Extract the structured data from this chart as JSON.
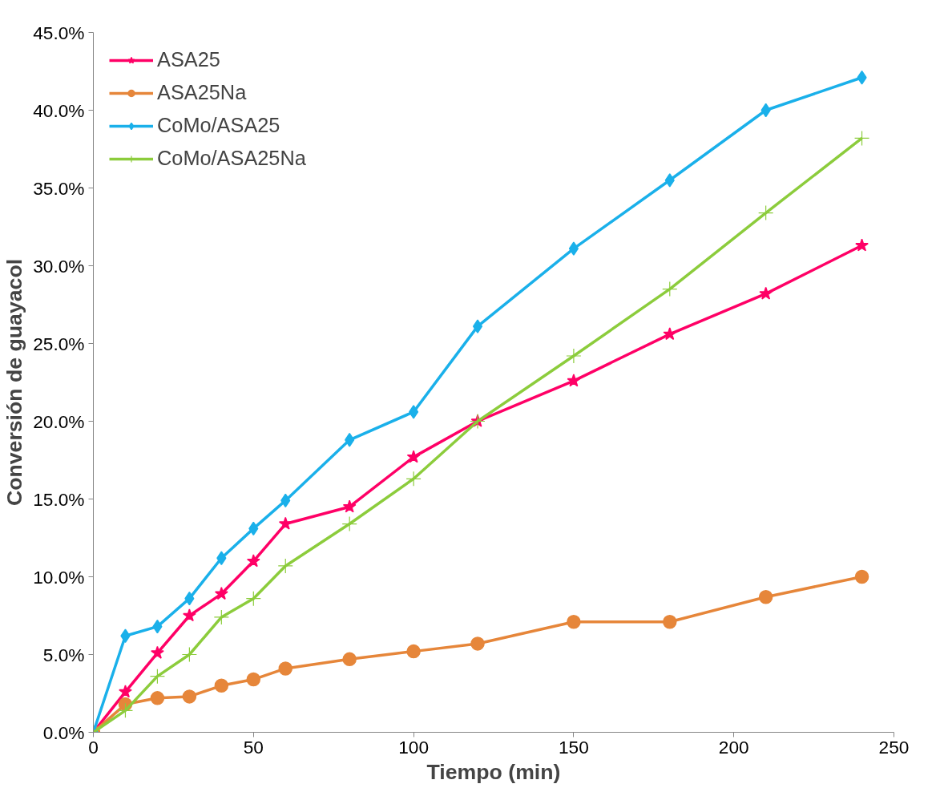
{
  "chart_data": {
    "type": "line",
    "xlabel": "Tiempo (min)",
    "ylabel": "Conversión de guayacol",
    "x": [
      0,
      10,
      20,
      30,
      40,
      50,
      60,
      80,
      100,
      120,
      150,
      180,
      210,
      240
    ],
    "series": [
      {
        "name": "ASA25",
        "color": "#ff0066",
        "marker": "star",
        "values": [
          0,
          2.6,
          5.1,
          7.5,
          8.9,
          11.0,
          13.4,
          14.5,
          17.7,
          20.0,
          22.6,
          25.6,
          28.2,
          31.3
        ]
      },
      {
        "name": "ASA25Na",
        "color": "#e6863a",
        "marker": "circle",
        "values": [
          0,
          1.8,
          2.2,
          2.3,
          3.0,
          3.4,
          4.1,
          4.7,
          5.2,
          5.7,
          7.1,
          7.1,
          8.7,
          10.0
        ]
      },
      {
        "name": "CoMo/ASA25",
        "color": "#1ab0ea",
        "marker": "diamond",
        "values": [
          0,
          6.2,
          6.8,
          8.6,
          11.2,
          13.1,
          14.9,
          18.8,
          20.6,
          26.1,
          31.1,
          35.5,
          40.0,
          42.1
        ]
      },
      {
        "name": "CoMo/ASA25Na",
        "color": "#8ccc3c",
        "marker": "cross",
        "values": [
          0,
          1.4,
          3.6,
          5.0,
          7.4,
          8.6,
          10.7,
          13.4,
          16.3,
          20.0,
          24.2,
          28.5,
          33.4,
          38.2
        ]
      }
    ],
    "xlim": [
      0,
      250
    ],
    "xticks": [
      0,
      50,
      100,
      150,
      200,
      250
    ],
    "ylim": [
      0,
      45
    ],
    "yticks": [
      {
        "value": 0,
        "label": "0.0%"
      },
      {
        "value": 5,
        "label": "5.0%"
      },
      {
        "value": 10,
        "label": "10.0%"
      },
      {
        "value": 15,
        "label": "15.0%"
      },
      {
        "value": 20,
        "label": "20.0%"
      },
      {
        "value": 25,
        "label": "25.0%"
      },
      {
        "value": 30,
        "label": "30.0%"
      },
      {
        "value": 35,
        "label": "35.0%"
      },
      {
        "value": 40,
        "label": "40.0%"
      },
      {
        "value": 45,
        "label": "45.0%"
      }
    ],
    "grid": false,
    "legend": "top left",
    "line_style": "solid"
  }
}
